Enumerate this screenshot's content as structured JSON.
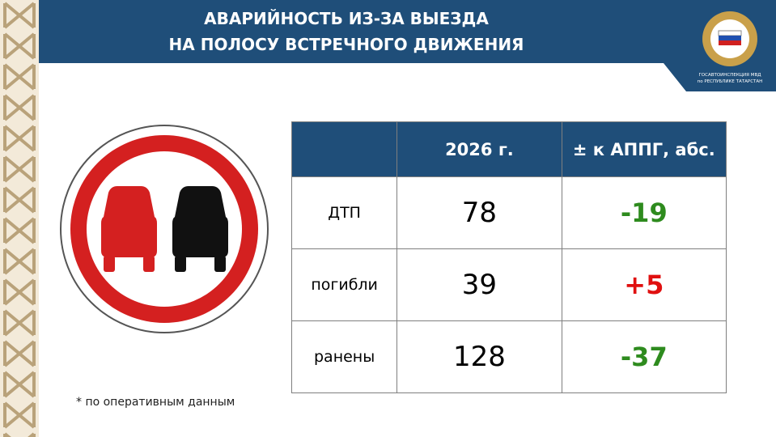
{
  "header": {
    "title_lines": [
      "АВАРИЙНОСТЬ ИЗ-ЗА ВЫЕЗДА",
      "НА ПОЛОСУ ВСТРЕЧНОГО ДВИЖЕНИЯ"
    ],
    "logo_text": [
      "ГОСАВТОИНСПЕКЦИЯ МВД",
      "по РЕСПУБЛИКЕ ТАТАРСТАН"
    ]
  },
  "table": {
    "columns": [
      "2026 г.",
      "± к АППГ, абс."
    ],
    "rows": [
      [
        "ДТП",
        "78",
        "-19"
      ],
      [
        "погибли",
        "39",
        "+5"
      ],
      [
        "ранены",
        "128",
        "-37"
      ]
    ]
  },
  "footnote": "* по оперативным данным"
}
